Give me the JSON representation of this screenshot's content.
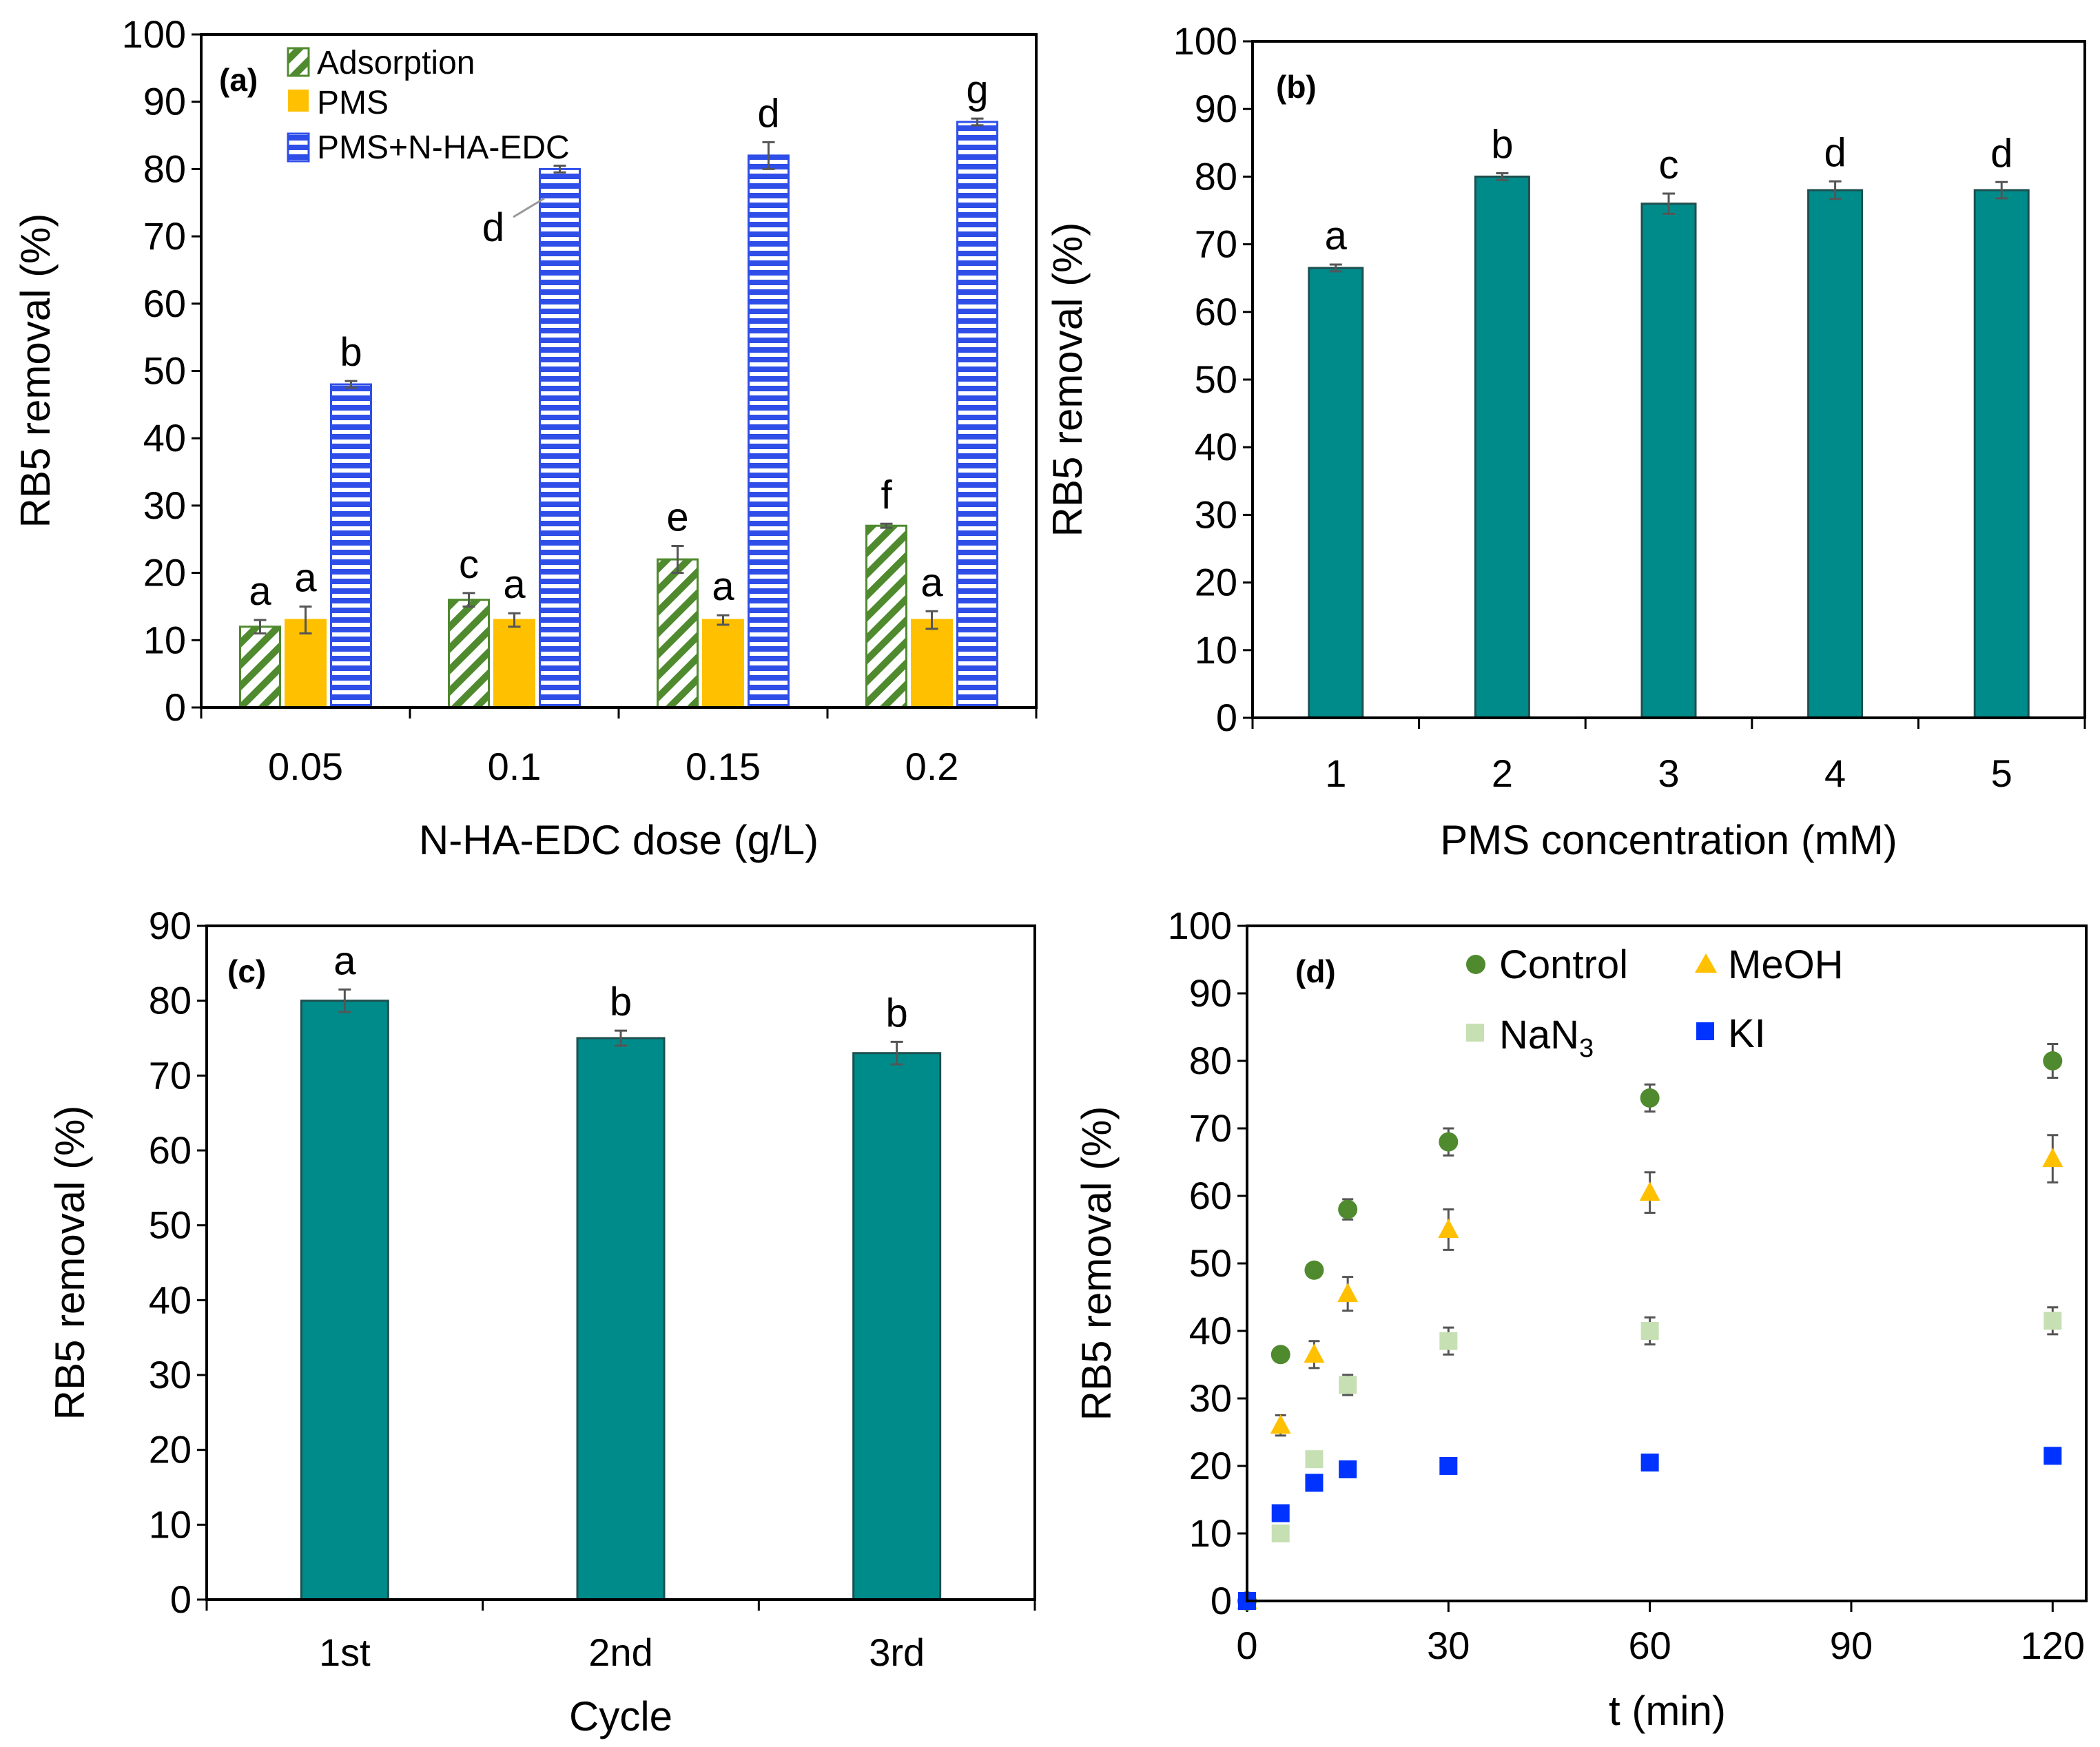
{
  "chart_data": [
    {
      "panel": "(a)",
      "type": "bar",
      "xlabel": "N-HA-EDC dose (g/L)",
      "ylabel": "RB5 removal (%)",
      "ylim": [
        0,
        100
      ],
      "yticks": [
        0,
        10,
        20,
        30,
        40,
        50,
        60,
        70,
        80,
        90,
        100
      ],
      "categories": [
        "0.05",
        "0.1",
        "0.15",
        "0.2"
      ],
      "legend_position": "top-left",
      "series": [
        {
          "name": "Adsorption",
          "color": "#4f8a2e",
          "values": [
            12,
            16,
            22,
            27
          ],
          "errors": [
            1,
            1,
            2,
            0.3
          ],
          "letters": [
            "a",
            "c",
            "e",
            "f"
          ]
        },
        {
          "name": "PMS",
          "color": "#ffc000",
          "values": [
            13,
            13,
            13,
            13
          ],
          "errors": [
            2,
            1,
            0.7,
            1.3
          ],
          "letters": [
            "a",
            "a",
            "a",
            "a"
          ]
        },
        {
          "name": "PMS+N-HA-EDC",
          "color": "#2f4ee8",
          "values": [
            48,
            80,
            82,
            87
          ],
          "errors": [
            0.5,
            0.5,
            2,
            0.5
          ],
          "letters": [
            "b",
            "d",
            "d",
            "g"
          ]
        }
      ]
    },
    {
      "panel": "(b)",
      "type": "bar",
      "xlabel": "PMS concentration (mM)",
      "ylabel": "RB5 removal (%)",
      "ylim": [
        0,
        100
      ],
      "yticks": [
        0,
        10,
        20,
        30,
        40,
        50,
        60,
        70,
        80,
        90,
        100
      ],
      "categories": [
        "1",
        "2",
        "3",
        "4",
        "5"
      ],
      "color": "#008b8b",
      "values": [
        66.5,
        80,
        76,
        78,
        78
      ],
      "errors": [
        0.5,
        0.5,
        1.5,
        1.3,
        1.2
      ],
      "letters": [
        "a",
        "b",
        "c",
        "d",
        "d"
      ]
    },
    {
      "panel": "(c)",
      "type": "bar",
      "xlabel": "Cycle",
      "ylabel": "RB5 removal (%)",
      "ylim": [
        0,
        90
      ],
      "yticks": [
        0,
        10,
        20,
        30,
        40,
        50,
        60,
        70,
        80,
        90
      ],
      "categories": [
        "1st",
        "2nd",
        "3rd"
      ],
      "color": "#008b8b",
      "values": [
        80,
        75,
        73
      ],
      "errors": [
        1.5,
        1,
        1.5
      ],
      "letters": [
        "a",
        "b",
        "b"
      ]
    },
    {
      "panel": "(d)",
      "type": "scatter",
      "xlabel": "t (min)",
      "ylabel": "RB5 removal (%)",
      "xlim": [
        0,
        125
      ],
      "ylim": [
        0,
        100
      ],
      "xticks": [
        0,
        30,
        60,
        90,
        120
      ],
      "yticks": [
        0,
        10,
        20,
        30,
        40,
        50,
        60,
        70,
        80,
        90,
        100
      ],
      "legend_position": "top",
      "series": [
        {
          "name": "Control",
          "marker": "circle",
          "color": "#4f8a2e",
          "x": [
            0,
            5,
            10,
            15,
            30,
            60,
            120
          ],
          "y": [
            0,
            36.5,
            49,
            58,
            68,
            74.5,
            80
          ],
          "errors": [
            0,
            1,
            1,
            1.5,
            2,
            2,
            2.5
          ]
        },
        {
          "name": "MeOH",
          "marker": "triangle",
          "color": "#ffc000",
          "x": [
            0,
            5,
            10,
            15,
            30,
            60,
            120
          ],
          "y": [
            0,
            26,
            36.5,
            45.5,
            55,
            60.5,
            65.5
          ],
          "errors": [
            0,
            1.5,
            2,
            2.5,
            3,
            3,
            3.5
          ]
        },
        {
          "name": "NaN",
          "name_subscript": "3",
          "marker": "square",
          "color": "#c6e0b4",
          "x": [
            0,
            5,
            10,
            15,
            30,
            60,
            120
          ],
          "y": [
            0,
            10,
            21,
            32,
            38.5,
            40,
            41.5
          ],
          "errors": [
            0,
            1,
            1,
            1.5,
            2,
            2,
            2
          ]
        },
        {
          "name": "KI",
          "marker": "square",
          "color": "#0033ff",
          "x": [
            0,
            5,
            10,
            15,
            30,
            60,
            120
          ],
          "y": [
            0,
            13,
            17.5,
            19.5,
            20,
            20.5,
            21.5
          ],
          "errors": [
            0,
            0.5,
            0.5,
            0.5,
            0.5,
            0.5,
            0.5
          ]
        }
      ]
    }
  ]
}
